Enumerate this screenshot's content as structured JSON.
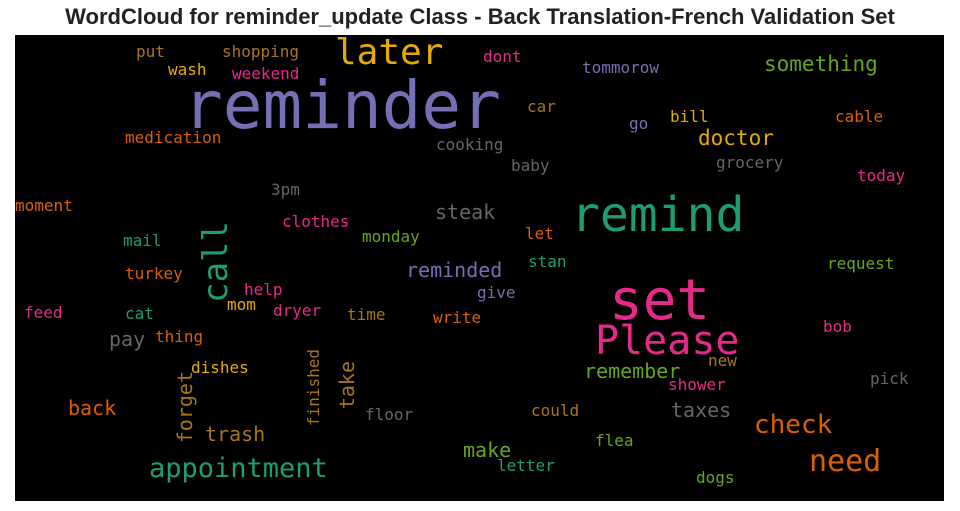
{
  "title": "WordCloud for reminder_update Class - Back Translation-French Validation Set",
  "chart_data": {
    "type": "wordcloud",
    "background": "#000000",
    "palette": [
      "#7570b3",
      "#1b9e77",
      "#e7298a",
      "#d95f02",
      "#66a61e",
      "#e6ab02",
      "#a6761d",
      "#666666"
    ],
    "words": [
      {
        "text": "reminder",
        "color": "#7570b3",
        "orientation": "horizontal"
      },
      {
        "text": "remind",
        "color": "#1b9e77",
        "orientation": "horizontal"
      },
      {
        "text": "set",
        "color": "#e7298a",
        "orientation": "horizontal"
      },
      {
        "text": "Please",
        "color": "#e7298a",
        "orientation": "horizontal"
      },
      {
        "text": "later",
        "color": "#e6ab02",
        "orientation": "horizontal"
      },
      {
        "text": "call",
        "color": "#1b9e77",
        "orientation": "vertical"
      },
      {
        "text": "appointment",
        "color": "#1b9e77",
        "orientation": "horizontal"
      },
      {
        "text": "need",
        "color": "#d95f02",
        "orientation": "horizontal"
      },
      {
        "text": "check",
        "color": "#d95f02",
        "orientation": "horizontal"
      },
      {
        "text": "something",
        "color": "#66a61e",
        "orientation": "horizontal"
      },
      {
        "text": "doctor",
        "color": "#e6ab02",
        "orientation": "horizontal"
      },
      {
        "text": "reminded",
        "color": "#7570b3",
        "orientation": "horizontal"
      },
      {
        "text": "steak",
        "color": "#666666",
        "orientation": "horizontal"
      },
      {
        "text": "remember",
        "color": "#66a61e",
        "orientation": "horizontal"
      },
      {
        "text": "taxes",
        "color": "#666666",
        "orientation": "horizontal"
      },
      {
        "text": "take",
        "color": "#a6761d",
        "orientation": "vertical"
      },
      {
        "text": "forget",
        "color": "#a6761d",
        "orientation": "vertical"
      },
      {
        "text": "trash",
        "color": "#a6761d",
        "orientation": "horizontal"
      },
      {
        "text": "back",
        "color": "#d95f02",
        "orientation": "horizontal"
      },
      {
        "text": "make",
        "color": "#66a61e",
        "orientation": "horizontal"
      },
      {
        "text": "pay",
        "color": "#666666",
        "orientation": "horizontal"
      },
      {
        "text": "shopping",
        "color": "#a6761d",
        "orientation": "horizontal"
      },
      {
        "text": "put",
        "color": "#a6761d",
        "orientation": "horizontal"
      },
      {
        "text": "wash",
        "color": "#e6ab02",
        "orientation": "horizontal"
      },
      {
        "text": "weekend",
        "color": "#e7298a",
        "orientation": "horizontal"
      },
      {
        "text": "dont",
        "color": "#e7298a",
        "orientation": "horizontal"
      },
      {
        "text": "tommorow",
        "color": "#7570b3",
        "orientation": "horizontal"
      },
      {
        "text": "car",
        "color": "#a6761d",
        "orientation": "horizontal"
      },
      {
        "text": "go",
        "color": "#7570b3",
        "orientation": "horizontal"
      },
      {
        "text": "bill",
        "color": "#e6ab02",
        "orientation": "horizontal"
      },
      {
        "text": "cable",
        "color": "#d95f02",
        "orientation": "horizontal"
      },
      {
        "text": "medication",
        "color": "#d95f02",
        "orientation": "horizontal"
      },
      {
        "text": "cooking",
        "color": "#666666",
        "orientation": "horizontal"
      },
      {
        "text": "baby",
        "color": "#666666",
        "orientation": "horizontal"
      },
      {
        "text": "grocery",
        "color": "#666666",
        "orientation": "horizontal"
      },
      {
        "text": "today",
        "color": "#e7298a",
        "orientation": "horizontal"
      },
      {
        "text": "3pm",
        "color": "#666666",
        "orientation": "horizontal"
      },
      {
        "text": "moment",
        "color": "#d95f02",
        "orientation": "horizontal"
      },
      {
        "text": "clothes",
        "color": "#e7298a",
        "orientation": "horizontal"
      },
      {
        "text": "let",
        "color": "#d95f02",
        "orientation": "horizontal"
      },
      {
        "text": "mail",
        "color": "#1b9e77",
        "orientation": "horizontal"
      },
      {
        "text": "monday",
        "color": "#66a61e",
        "orientation": "horizontal"
      },
      {
        "text": "stan",
        "color": "#1b9e77",
        "orientation": "horizontal"
      },
      {
        "text": "request",
        "color": "#66a61e",
        "orientation": "horizontal"
      },
      {
        "text": "turkey",
        "color": "#d95f02",
        "orientation": "horizontal"
      },
      {
        "text": "help",
        "color": "#e7298a",
        "orientation": "horizontal"
      },
      {
        "text": "give",
        "color": "#7570b3",
        "orientation": "horizontal"
      },
      {
        "text": "mom",
        "color": "#e6ab02",
        "orientation": "horizontal"
      },
      {
        "text": "feed",
        "color": "#e7298a",
        "orientation": "horizontal"
      },
      {
        "text": "cat",
        "color": "#1b9e77",
        "orientation": "horizontal"
      },
      {
        "text": "dryer",
        "color": "#e7298a",
        "orientation": "horizontal"
      },
      {
        "text": "time",
        "color": "#a6761d",
        "orientation": "horizontal"
      },
      {
        "text": "write",
        "color": "#d95f02",
        "orientation": "horizontal"
      },
      {
        "text": "thing",
        "color": "#d95f02",
        "orientation": "horizontal"
      },
      {
        "text": "bob",
        "color": "#e7298a",
        "orientation": "horizontal"
      },
      {
        "text": "new",
        "color": "#a6761d",
        "orientation": "horizontal"
      },
      {
        "text": "dishes",
        "color": "#e6ab02",
        "orientation": "horizontal"
      },
      {
        "text": "finished",
        "color": "#a6761d",
        "orientation": "vertical"
      },
      {
        "text": "shower",
        "color": "#e7298a",
        "orientation": "horizontal"
      },
      {
        "text": "pick",
        "color": "#666666",
        "orientation": "horizontal"
      },
      {
        "text": "floor",
        "color": "#666666",
        "orientation": "horizontal"
      },
      {
        "text": "could",
        "color": "#a6761d",
        "orientation": "horizontal"
      },
      {
        "text": "flea",
        "color": "#66a61e",
        "orientation": "horizontal"
      },
      {
        "text": "letter",
        "color": "#1b9e77",
        "orientation": "horizontal"
      },
      {
        "text": "dogs",
        "color": "#66a61e",
        "orientation": "horizontal"
      }
    ]
  }
}
